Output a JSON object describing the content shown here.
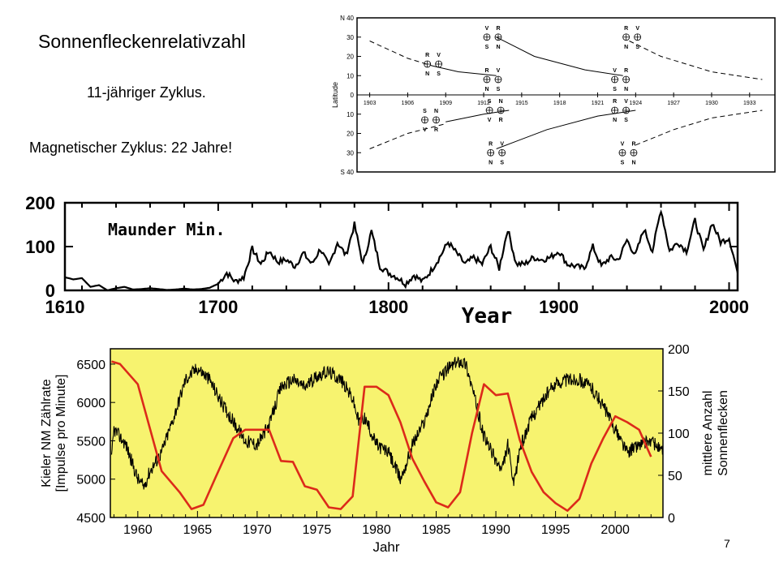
{
  "slide": {
    "title": "Sonnenfleckenrelativzahl",
    "subtitle1": "11-jähriger Zyklus.",
    "subtitle2": "Magnetischer Zyklus: 22 Jahre!",
    "page_number": "7"
  },
  "chart_data": [
    {
      "type": "line",
      "kind": "butterfly-diagram",
      "ylabel": "Latitude",
      "y_tick_labels": [
        "N 40",
        "30",
        "20",
        "10",
        "0",
        "10",
        "20",
        "30",
        "S 40"
      ],
      "x_tick_labels": [
        "1903",
        "1906",
        "1909",
        "1912",
        "1915",
        "1918",
        "1921",
        "1924",
        "1927",
        "1930",
        "1933"
      ],
      "xlim": [
        1902,
        1935
      ],
      "ylim": [
        -40,
        40
      ],
      "series": [
        {
          "hemisphere": "N",
          "style": "dashed",
          "x": [
            1903,
            1906,
            1908
          ],
          "y": [
            28,
            19,
            15
          ]
        },
        {
          "hemisphere": "N",
          "style": "solid",
          "x": [
            1908,
            1910,
            1913
          ],
          "y": [
            15,
            12,
            10
          ]
        },
        {
          "hemisphere": "N",
          "style": "solid",
          "x": [
            1913,
            1916,
            1920,
            1923
          ],
          "y": [
            30,
            20,
            13,
            10
          ]
        },
        {
          "hemisphere": "N",
          "style": "dashed",
          "x": [
            1923.5,
            1926,
            1930,
            1934
          ],
          "y": [
            28,
            20,
            12,
            8
          ]
        },
        {
          "hemisphere": "S",
          "style": "dashed",
          "x": [
            1903,
            1906,
            1909
          ],
          "y": [
            -28,
            -20,
            -15
          ]
        },
        {
          "hemisphere": "S",
          "style": "solid",
          "x": [
            1909,
            1912,
            1914
          ],
          "y": [
            -14,
            -10,
            -8
          ]
        },
        {
          "hemisphere": "S",
          "style": "solid",
          "x": [
            1913,
            1917,
            1921,
            1924
          ],
          "y": [
            -28,
            -18,
            -11,
            -8
          ]
        },
        {
          "hemisphere": "S",
          "style": "dashed",
          "x": [
            1924,
            1927,
            1930,
            1934
          ],
          "y": [
            -26,
            -18,
            -12,
            -8
          ]
        }
      ],
      "annotations": [
        {
          "x": 1908,
          "y": 16,
          "top": [
            "R",
            "V"
          ],
          "bottom": [
            "N",
            "S"
          ]
        },
        {
          "x": 1912.7,
          "y": 30,
          "top": [
            "V",
            "R"
          ],
          "bottom": [
            "S",
            "N"
          ]
        },
        {
          "x": 1912.7,
          "y": 8,
          "top": [
            "R",
            "V"
          ],
          "bottom": [
            "N",
            "S"
          ]
        },
        {
          "x": 1922.8,
          "y": 8,
          "top": [
            "V",
            "R"
          ],
          "bottom": [
            "S",
            "N"
          ]
        },
        {
          "x": 1923.7,
          "y": 30,
          "top": [
            "R",
            "V"
          ],
          "bottom": [
            "N",
            "S"
          ]
        },
        {
          "x": 1907.8,
          "y": -13,
          "top": [
            "S",
            "N"
          ],
          "bottom": [
            "V",
            "R"
          ]
        },
        {
          "x": 1912.9,
          "y": -8,
          "top": [
            "S",
            "N"
          ],
          "bottom": [
            "V",
            "R"
          ]
        },
        {
          "x": 1913,
          "y": -30,
          "top": [
            "R",
            "V"
          ],
          "bottom": [
            "N",
            "S"
          ]
        },
        {
          "x": 1922.8,
          "y": -8,
          "top": [
            "R",
            "V"
          ],
          "bottom": [
            "N",
            "S"
          ]
        },
        {
          "x": 1923.4,
          "y": -30,
          "top": [
            "V",
            "R"
          ],
          "bottom": [
            "S",
            "N"
          ]
        }
      ]
    },
    {
      "type": "line",
      "title": "Maunder Min.",
      "xlabel": "Year",
      "ylabel": "",
      "x_tick_labels": [
        "1610",
        "1700",
        "1800",
        "1900",
        "2000"
      ],
      "y_tick_labels": [
        "0",
        "100",
        "200"
      ],
      "xlim": [
        1610,
        2005
      ],
      "ylim": [
        0,
        200
      ],
      "grid": false,
      "series": [
        {
          "name": "",
          "color": "#000000",
          "x": [
            1610,
            1615,
            1620,
            1625,
            1630,
            1635,
            1640,
            1645,
            1650,
            1655,
            1660,
            1665,
            1670,
            1675,
            1680,
            1685,
            1690,
            1695,
            1700,
            1705,
            1710,
            1715,
            1720,
            1725,
            1730,
            1735,
            1740,
            1745,
            1750,
            1755,
            1760,
            1765,
            1770,
            1775,
            1780,
            1785,
            1790,
            1795,
            1800,
            1805,
            1810,
            1815,
            1820,
            1825,
            1830,
            1835,
            1840,
            1845,
            1850,
            1855,
            1860,
            1865,
            1870,
            1875,
            1880,
            1885,
            1890,
            1895,
            1900,
            1905,
            1910,
            1915,
            1920,
            1925,
            1930,
            1935,
            1940,
            1945,
            1950,
            1955,
            1960,
            1965,
            1970,
            1975,
            1980,
            1985,
            1990,
            1995,
            2000,
            2005
          ],
          "y": [
            30,
            25,
            28,
            8,
            12,
            0,
            5,
            8,
            2,
            3,
            5,
            3,
            1,
            2,
            4,
            2,
            3,
            6,
            15,
            40,
            20,
            30,
            95,
            60,
            90,
            65,
            70,
            55,
            85,
            60,
            95,
            55,
            110,
            80,
            150,
            60,
            135,
            55,
            40,
            30,
            15,
            35,
            20,
            45,
            75,
            110,
            85,
            60,
            75,
            60,
            100,
            50,
            140,
            60,
            60,
            75,
            70,
            75,
            90,
            60,
            55,
            50,
            100,
            55,
            75,
            70,
            115,
            80,
            140,
            90,
            185,
            90,
            110,
            90,
            160,
            90,
            155,
            110,
            120,
            40
          ]
        }
      ]
    },
    {
      "type": "line",
      "xlabel": "Jahr",
      "ylabel": "Kieler NM Zählrate [Impulse pro Minute]",
      "y2label": "mittlere Anzahl Sonnenflecken",
      "x_tick_labels": [
        "1960",
        "1965",
        "1970",
        "1975",
        "1980",
        "1985",
        "1990",
        "1995",
        "2000"
      ],
      "y_tick_labels": [
        "4500",
        "5000",
        "5500",
        "6000",
        "6500"
      ],
      "y2_tick_labels": [
        "0",
        "50",
        "100",
        "150",
        "200"
      ],
      "xlim": [
        1957.7,
        2004
      ],
      "ylim": [
        4500,
        6700
      ],
      "y2lim": [
        0,
        200
      ],
      "background": "#f7f36f",
      "series": [
        {
          "name": "Kieler NM Zählrate",
          "axis": "left",
          "color": "#000000",
          "x": [
            1957.8,
            1958,
            1959,
            1960,
            1960.5,
            1961,
            1962,
            1963,
            1964,
            1965,
            1966,
            1967,
            1968,
            1969,
            1970,
            1971,
            1972,
            1973,
            1974,
            1975,
            1976,
            1977,
            1978,
            1978.5,
            1979,
            1980,
            1981,
            1982,
            1982.5,
            1983,
            1984,
            1985,
            1986,
            1987,
            1987.5,
            1988,
            1989,
            1990,
            1990.5,
            1991,
            1991.5,
            1992,
            1993,
            1994,
            1995,
            1996,
            1997,
            1998,
            1999,
            2000,
            2001,
            2002,
            2003,
            2004
          ],
          "y": [
            5250,
            5650,
            5450,
            5000,
            4900,
            5100,
            5350,
            5800,
            6300,
            6450,
            6300,
            6000,
            5750,
            5500,
            5450,
            5700,
            6200,
            6300,
            6200,
            6350,
            6400,
            6300,
            6050,
            5750,
            5800,
            5450,
            5350,
            5000,
            5200,
            5450,
            5750,
            6250,
            6450,
            6550,
            6500,
            6200,
            5550,
            5250,
            5100,
            5450,
            4900,
            5400,
            5800,
            6050,
            6250,
            6300,
            6300,
            6200,
            5950,
            5650,
            5350,
            5450,
            5500,
            5350
          ]
        },
        {
          "name": "mittlere Anzahl Sonnenflecken",
          "axis": "right",
          "color": "#dc2a1a",
          "x": [
            1957.8,
            1958.5,
            1960,
            1962,
            1963.5,
            1964.5,
            1965.5,
            1966.5,
            1968,
            1969,
            1970,
            1971,
            1972,
            1973,
            1974,
            1975,
            1976,
            1977,
            1978,
            1979,
            1980,
            1981,
            1982,
            1983,
            1984,
            1985,
            1986,
            1987,
            1988,
            1989,
            1990,
            1991,
            1992,
            1993,
            1994,
            1995,
            1996,
            1997,
            1998,
            1999,
            2000,
            2001,
            2002,
            2003
          ],
          "y": [
            185,
            182,
            158,
            55,
            30,
            10,
            15,
            47,
            94,
            104,
            104,
            104,
            67,
            66,
            37,
            33,
            12,
            10,
            25,
            155,
            155,
            145,
            113,
            70,
            43,
            18,
            12,
            30,
            100,
            158,
            145,
            147,
            92,
            54,
            30,
            17,
            8,
            22,
            64,
            94,
            120,
            113,
            104,
            72
          ]
        }
      ]
    }
  ]
}
